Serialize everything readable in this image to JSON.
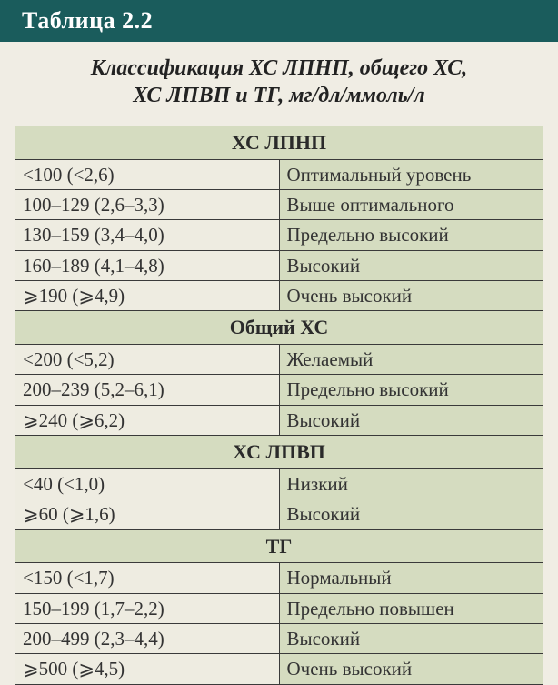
{
  "title": "Таблица 2.2",
  "subtitle_line1": "Классификация ХС ЛПНП, общего ХС,",
  "subtitle_line2": "ХС ЛПВП и ТГ, мг/дл/ммоль/л",
  "colors": {
    "title_bg": "#1a5c5c",
    "title_fg": "#ffffff",
    "page_bg": "#f0ede4",
    "header_cell_bg": "#d5dcc0",
    "range_cell_bg": "#eeece1",
    "label_cell_bg": "#d5dcc0",
    "border": "#3a3a3a",
    "text": "#333333"
  },
  "typography": {
    "title_fontsize": 26,
    "subtitle_fontsize": 24,
    "header_fontsize": 22,
    "cell_fontsize": 21,
    "font_family": "Georgia, Times New Roman, serif"
  },
  "sections": [
    {
      "name": "ХС ЛПНП",
      "rows": [
        {
          "range": "<100 (<2,6)",
          "label": "Оптимальный уровень"
        },
        {
          "range": "100–129 (2,6–3,3)",
          "label": "Выше оптимального"
        },
        {
          "range": "130–159 (3,4–4,0)",
          "label": "Предельно высокий"
        },
        {
          "range": "160–189 (4,1–4,8)",
          "label": "Высокий"
        },
        {
          "range": "⩾190 (⩾4,9)",
          "label": "Очень высокий"
        }
      ]
    },
    {
      "name": "Общий ХС",
      "rows": [
        {
          "range": "<200 (<5,2)",
          "label": "Желаемый"
        },
        {
          "range": "200–239 (5,2–6,1)",
          "label": "Предельно высокий"
        },
        {
          "range": "⩾240 (⩾6,2)",
          "label": "Высокий"
        }
      ]
    },
    {
      "name": "ХС ЛПВП",
      "rows": [
        {
          "range": "<40 (<1,0)",
          "label": "Низкий"
        },
        {
          "range": "⩾60 (⩾1,6)",
          "label": "Высокий"
        }
      ]
    },
    {
      "name": "ТГ",
      "rows": [
        {
          "range": "<150 (<1,7)",
          "label": "Нормальный"
        },
        {
          "range": "150–199 (1,7–2,2)",
          "label": "Предельно повышен"
        },
        {
          "range": "200–499 (2,3–4,4)",
          "label": "Высокий"
        },
        {
          "range": "⩾500 (⩾4,5)",
          "label": "Очень высокий"
        }
      ]
    }
  ]
}
